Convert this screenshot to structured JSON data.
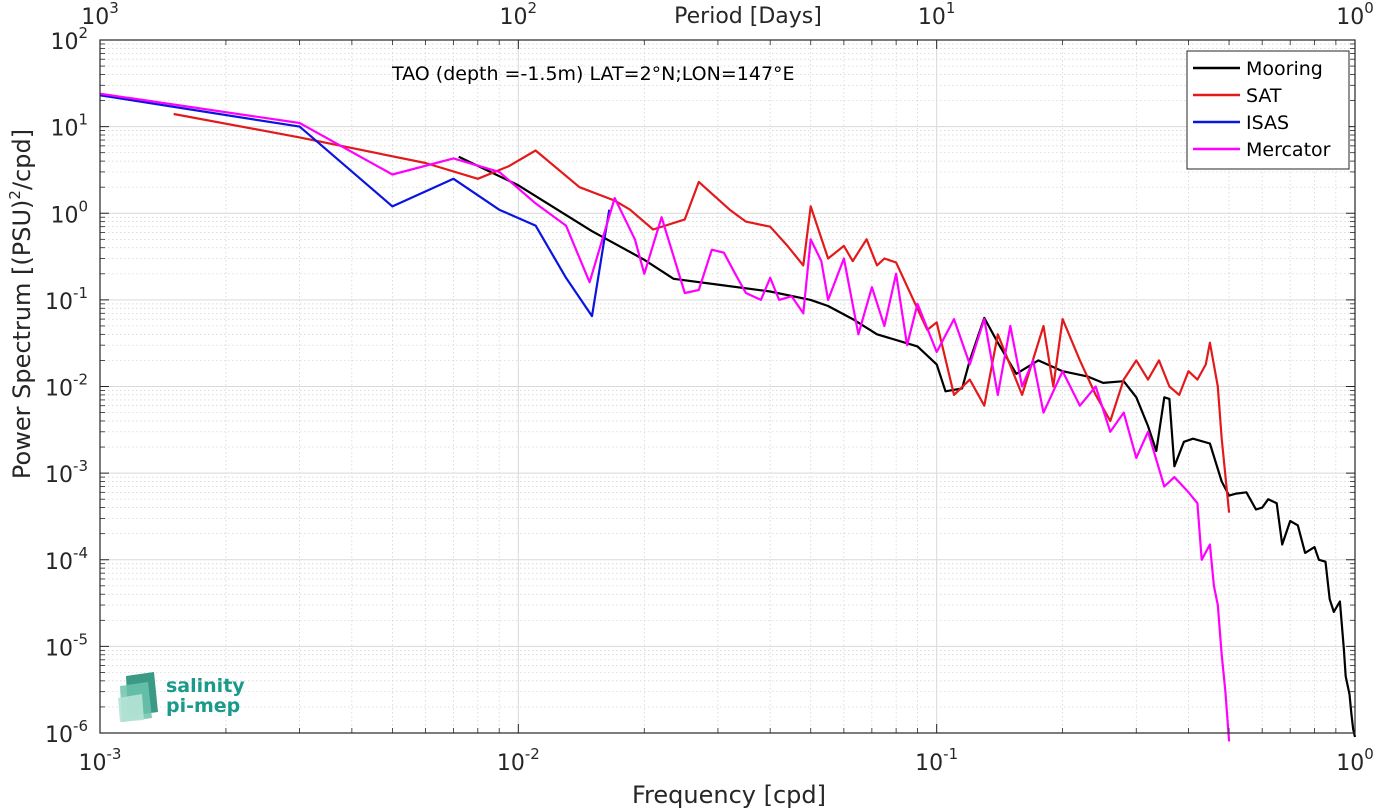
{
  "chart_data": {
    "type": "line",
    "title": "",
    "annotation": "TAO (depth =-1.5m) LAT=2°N;LON=147°E",
    "xlabel": "Frequency [cpd]",
    "ylabel": "Power Spectrum [(PSU)",
    "ylabel_sup": "2",
    "ylabel_tail": "/cpd]",
    "top_xlabel": "Period [Days]",
    "xscale": "log",
    "yscale": "log",
    "xlim": [
      0.001,
      1
    ],
    "ylim": [
      1e-06,
      100
    ],
    "grid": true,
    "legend_position": "top-right",
    "x_ticks": [
      {
        "value": 0.001,
        "base": "10",
        "exp": "-3"
      },
      {
        "value": 0.01,
        "base": "10",
        "exp": "-2"
      },
      {
        "value": 0.1,
        "base": "10",
        "exp": "-1"
      },
      {
        "value": 1,
        "base": "10",
        "exp": "0"
      }
    ],
    "top_ticks": [
      {
        "freq": 0.001,
        "base": "10",
        "exp": "3"
      },
      {
        "freq": 0.01,
        "base": "10",
        "exp": "2"
      },
      {
        "freq": 0.1,
        "base": "10",
        "exp": "1"
      },
      {
        "freq": 1,
        "base": "10",
        "exp": "0"
      }
    ],
    "y_ticks": [
      {
        "value": 1e-06,
        "base": "10",
        "exp": "-6"
      },
      {
        "value": 1e-05,
        "base": "10",
        "exp": "-5"
      },
      {
        "value": 0.0001,
        "base": "10",
        "exp": "-4"
      },
      {
        "value": 0.001,
        "base": "10",
        "exp": "-3"
      },
      {
        "value": 0.01,
        "base": "10",
        "exp": "-2"
      },
      {
        "value": 0.1,
        "base": "10",
        "exp": "-1"
      },
      {
        "value": 1,
        "base": "10",
        "exp": "0"
      },
      {
        "value": 10,
        "base": "10",
        "exp": "1"
      },
      {
        "value": 100,
        "base": "10",
        "exp": "2"
      }
    ],
    "series": [
      {
        "name": "Mooring",
        "color": "#000000",
        "points": [
          [
            0.0072,
            4.5
          ],
          [
            0.01,
            2.1
          ],
          [
            0.015,
            0.62
          ],
          [
            0.02,
            0.29
          ],
          [
            0.0235,
            0.175
          ],
          [
            0.03,
            0.15
          ],
          [
            0.04,
            0.125
          ],
          [
            0.05,
            0.1
          ],
          [
            0.055,
            0.085
          ],
          [
            0.063,
            0.06
          ],
          [
            0.072,
            0.04
          ],
          [
            0.09,
            0.029
          ],
          [
            0.1,
            0.018
          ],
          [
            0.105,
            0.0088
          ],
          [
            0.115,
            0.0095
          ],
          [
            0.12,
            0.02
          ],
          [
            0.13,
            0.062
          ],
          [
            0.14,
            0.032
          ],
          [
            0.155,
            0.014
          ],
          [
            0.175,
            0.02
          ],
          [
            0.2,
            0.015
          ],
          [
            0.23,
            0.013
          ],
          [
            0.25,
            0.011
          ],
          [
            0.28,
            0.0115
          ],
          [
            0.3,
            0.0075
          ],
          [
            0.32,
            0.0035
          ],
          [
            0.335,
            0.0018
          ],
          [
            0.35,
            0.0075
          ],
          [
            0.36,
            0.0072
          ],
          [
            0.37,
            0.0012
          ],
          [
            0.39,
            0.0023
          ],
          [
            0.41,
            0.0025
          ],
          [
            0.45,
            0.0022
          ],
          [
            0.48,
            0.0008
          ],
          [
            0.5,
            0.00055
          ],
          [
            0.52,
            0.00058
          ],
          [
            0.55,
            0.0006
          ],
          [
            0.58,
            0.00038
          ],
          [
            0.6,
            0.0004
          ],
          [
            0.62,
            0.0005
          ],
          [
            0.65,
            0.00045
          ],
          [
            0.67,
            0.00015
          ],
          [
            0.7,
            0.00028
          ],
          [
            0.73,
            0.00025
          ],
          [
            0.76,
            0.00012
          ],
          [
            0.8,
            0.00014
          ],
          [
            0.82,
            0.0001
          ],
          [
            0.85,
            9.5e-05
          ],
          [
            0.87,
            3.5e-05
          ],
          [
            0.89,
            2.5e-05
          ],
          [
            0.92,
            3.3e-05
          ],
          [
            0.94,
            9.5e-06
          ],
          [
            0.95,
            4.5e-06
          ],
          [
            0.97,
            2.8e-06
          ],
          [
            0.98,
            1.7e-06
          ],
          [
            0.99,
            1.1e-06
          ],
          [
            1.0,
            9e-07
          ]
        ]
      },
      {
        "name": "SAT",
        "color": "#e31a1c",
        "points": [
          [
            0.0015,
            14
          ],
          [
            0.003,
            7.5
          ],
          [
            0.006,
            3.8
          ],
          [
            0.008,
            2.5
          ],
          [
            0.0095,
            3.5
          ],
          [
            0.011,
            5.3
          ],
          [
            0.014,
            2
          ],
          [
            0.017,
            1.4
          ],
          [
            0.0185,
            1.1
          ],
          [
            0.021,
            0.65
          ],
          [
            0.025,
            0.85
          ],
          [
            0.027,
            2.3
          ],
          [
            0.032,
            1.1
          ],
          [
            0.035,
            0.8
          ],
          [
            0.04,
            0.7
          ],
          [
            0.044,
            0.42
          ],
          [
            0.048,
            0.25
          ],
          [
            0.05,
            1.2
          ],
          [
            0.055,
            0.3
          ],
          [
            0.06,
            0.42
          ],
          [
            0.063,
            0.28
          ],
          [
            0.068,
            0.5
          ],
          [
            0.072,
            0.25
          ],
          [
            0.075,
            0.3
          ],
          [
            0.08,
            0.27
          ],
          [
            0.088,
            0.1
          ],
          [
            0.095,
            0.045
          ],
          [
            0.1,
            0.055
          ],
          [
            0.11,
            0.008
          ],
          [
            0.12,
            0.012
          ],
          [
            0.13,
            0.006
          ],
          [
            0.14,
            0.04
          ],
          [
            0.16,
            0.008
          ],
          [
            0.18,
            0.05
          ],
          [
            0.19,
            0.01
          ],
          [
            0.2,
            0.06
          ],
          [
            0.22,
            0.02
          ],
          [
            0.24,
            0.008
          ],
          [
            0.26,
            0.004
          ],
          [
            0.28,
            0.012
          ],
          [
            0.3,
            0.02
          ],
          [
            0.32,
            0.012
          ],
          [
            0.34,
            0.02
          ],
          [
            0.36,
            0.01
          ],
          [
            0.38,
            0.008
          ],
          [
            0.4,
            0.015
          ],
          [
            0.42,
            0.012
          ],
          [
            0.44,
            0.018
          ],
          [
            0.45,
            0.032
          ],
          [
            0.47,
            0.01
          ],
          [
            0.48,
            0.0025
          ],
          [
            0.5,
            0.00035
          ]
        ]
      },
      {
        "name": "ISAS",
        "color": "#0a14e0",
        "points": [
          [
            0.001,
            23
          ],
          [
            0.003,
            10
          ],
          [
            0.005,
            1.2
          ],
          [
            0.007,
            2.5
          ],
          [
            0.009,
            1.1
          ],
          [
            0.011,
            0.72
          ],
          [
            0.013,
            0.18
          ],
          [
            0.015,
            0.065
          ],
          [
            0.016,
            0.45
          ],
          [
            0.0165,
            1.1
          ]
        ]
      },
      {
        "name": "Mercator",
        "color": "#ff00ff",
        "points": [
          [
            0.001,
            24
          ],
          [
            0.003,
            11
          ],
          [
            0.005,
            2.8
          ],
          [
            0.007,
            4.3
          ],
          [
            0.009,
            3
          ],
          [
            0.011,
            1.3
          ],
          [
            0.013,
            0.72
          ],
          [
            0.0148,
            0.16
          ],
          [
            0.017,
            1.5
          ],
          [
            0.019,
            0.5
          ],
          [
            0.02,
            0.2
          ],
          [
            0.022,
            0.9
          ],
          [
            0.025,
            0.12
          ],
          [
            0.027,
            0.13
          ],
          [
            0.029,
            0.38
          ],
          [
            0.031,
            0.35
          ],
          [
            0.033,
            0.2
          ],
          [
            0.035,
            0.12
          ],
          [
            0.038,
            0.1
          ],
          [
            0.04,
            0.18
          ],
          [
            0.042,
            0.1
          ],
          [
            0.045,
            0.11
          ],
          [
            0.048,
            0.07
          ],
          [
            0.05,
            0.5
          ],
          [
            0.053,
            0.28
          ],
          [
            0.055,
            0.1
          ],
          [
            0.06,
            0.3
          ],
          [
            0.065,
            0.04
          ],
          [
            0.07,
            0.14
          ],
          [
            0.075,
            0.05
          ],
          [
            0.08,
            0.2
          ],
          [
            0.085,
            0.03
          ],
          [
            0.09,
            0.09
          ],
          [
            0.1,
            0.025
          ],
          [
            0.11,
            0.06
          ],
          [
            0.12,
            0.018
          ],
          [
            0.13,
            0.06
          ],
          [
            0.14,
            0.008
          ],
          [
            0.15,
            0.05
          ],
          [
            0.16,
            0.01
          ],
          [
            0.17,
            0.02
          ],
          [
            0.18,
            0.005
          ],
          [
            0.2,
            0.015
          ],
          [
            0.22,
            0.006
          ],
          [
            0.24,
            0.01
          ],
          [
            0.26,
            0.003
          ],
          [
            0.28,
            0.005
          ],
          [
            0.3,
            0.0015
          ],
          [
            0.32,
            0.003
          ],
          [
            0.35,
            0.0007
          ],
          [
            0.37,
            0.0009
          ],
          [
            0.4,
            0.0006
          ],
          [
            0.42,
            0.00045
          ],
          [
            0.43,
            0.0001
          ],
          [
            0.45,
            0.00015
          ],
          [
            0.46,
            5e-05
          ],
          [
            0.47,
            3e-05
          ],
          [
            0.48,
            8e-06
          ],
          [
            0.49,
            3e-06
          ],
          [
            0.5,
            8e-07
          ]
        ]
      }
    ]
  },
  "logo": {
    "line1": "salinity",
    "line2": "pi-mep"
  }
}
